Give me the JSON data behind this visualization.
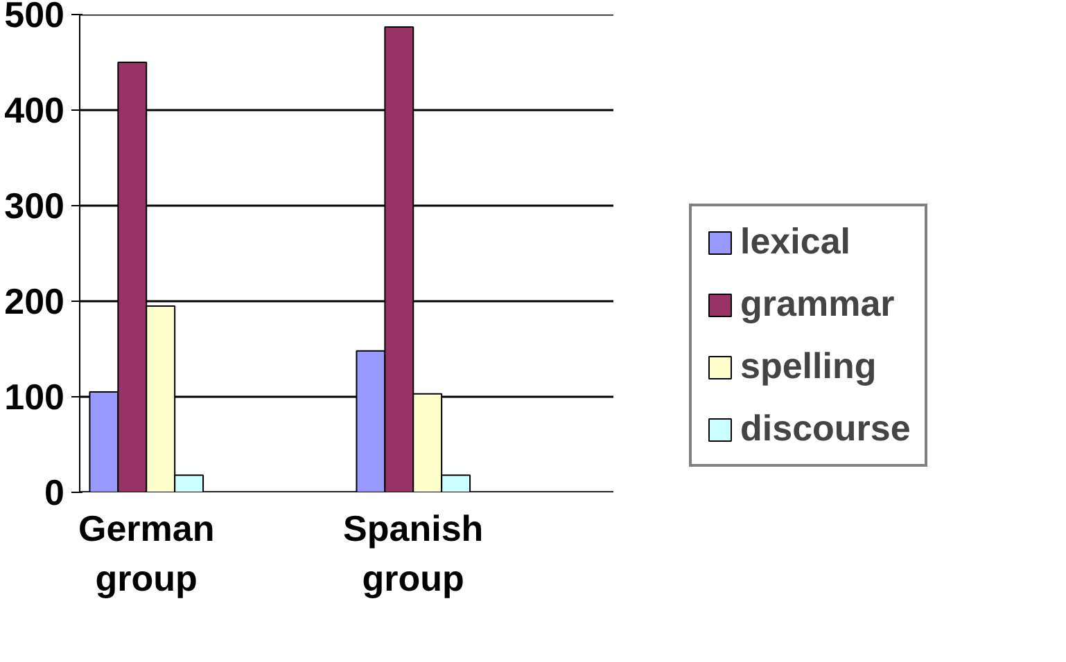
{
  "chart_data": {
    "type": "bar",
    "categories": [
      "German group",
      null,
      "Spanish group",
      null
    ],
    "series": [
      {
        "name": "lexical",
        "color": "#9999ff",
        "values": [
          105,
          null,
          148,
          null
        ]
      },
      {
        "name": "grammar",
        "color": "#993366",
        "values": [
          450,
          null,
          487,
          null
        ]
      },
      {
        "name": "spelling",
        "color": "#ffffcc",
        "values": [
          195,
          null,
          103,
          null
        ]
      },
      {
        "name": "discourse",
        "color": "#ccffff",
        "values": [
          18,
          null,
          18,
          null
        ]
      }
    ],
    "ylim": [
      0,
      500
    ],
    "yticks": [
      0,
      100,
      200,
      300,
      400,
      500
    ],
    "grid": "y",
    "legend": "right"
  }
}
